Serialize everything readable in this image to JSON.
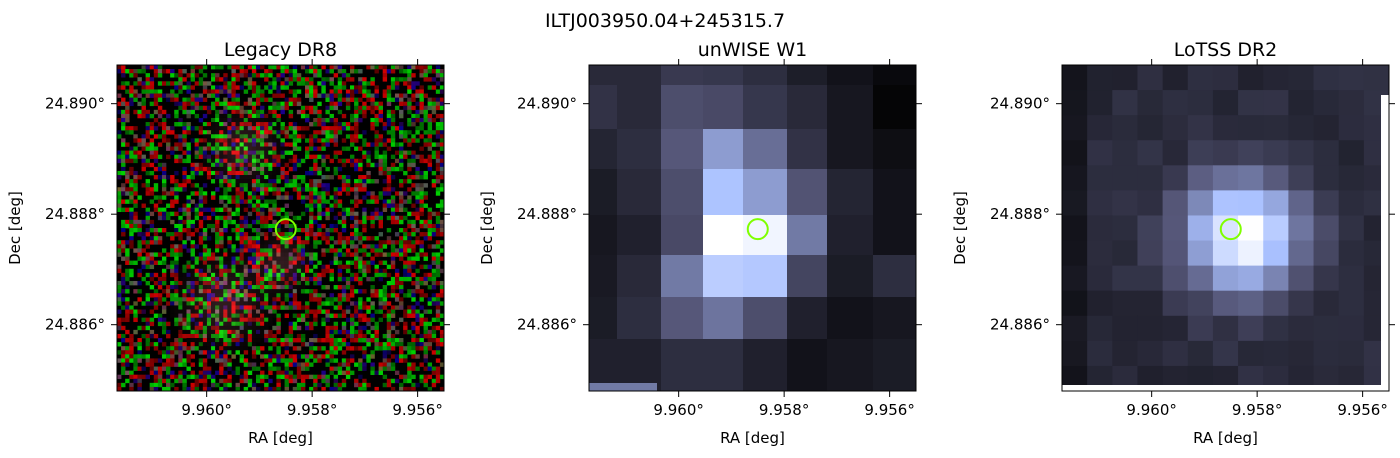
{
  "figure": {
    "title": "ILTJ003950.04+245315.7"
  },
  "chart_data": [
    {
      "type": "heatmap",
      "title": "Legacy DR8",
      "xlabel": "RA [deg]",
      "ylabel": "Dec [deg]",
      "x_ticks": [
        9.96,
        9.958,
        9.956
      ],
      "x_tick_labels": [
        "9.960°",
        "9.958°",
        "9.956°"
      ],
      "y_ticks": [
        24.89,
        24.888,
        24.886
      ],
      "y_tick_labels": [
        "24.890°",
        "24.888°",
        "24.886°"
      ],
      "xlim": [
        9.9617,
        9.9555
      ],
      "ylim": [
        24.8848,
        24.8907
      ],
      "image": "rgb noise cutout",
      "marker": {
        "ra": 9.9585,
        "dec": 24.88773,
        "shape": "circle",
        "color": "#7fff00"
      }
    },
    {
      "type": "heatmap",
      "title": "unWISE W1",
      "xlabel": "RA [deg]",
      "ylabel": "Dec [deg]",
      "x_ticks": [
        9.96,
        9.958,
        9.956
      ],
      "x_tick_labels": [
        "9.960°",
        "9.958°",
        "9.956°"
      ],
      "y_ticks": [
        24.89,
        24.888,
        24.886
      ],
      "y_tick_labels": [
        "24.890°",
        "24.888°",
        "24.886°"
      ],
      "xlim": [
        9.9617,
        9.9555
      ],
      "ylim": [
        24.8848,
        24.8907
      ],
      "colormap": "bone",
      "marker": {
        "ra": 9.9585,
        "dec": 24.88773,
        "shape": "circle",
        "color": "#7fff00"
      }
    },
    {
      "type": "heatmap",
      "title": "LoTSS DR2",
      "xlabel": "RA [deg]",
      "ylabel": "Dec [deg]",
      "x_ticks": [
        9.96,
        9.958,
        9.956
      ],
      "x_tick_labels": [
        "9.960°",
        "9.958°",
        "9.956°"
      ],
      "y_ticks": [
        24.89,
        24.888,
        24.886
      ],
      "y_tick_labels": [
        "24.890°",
        "24.888°",
        "24.886°"
      ],
      "xlim": [
        9.9617,
        9.9555
      ],
      "ylim": [
        24.8848,
        24.8907
      ],
      "colormap": "bone",
      "marker": {
        "ra": 9.9585,
        "dec": 24.88773,
        "shape": "circle",
        "color": "#7fff00"
      }
    }
  ]
}
